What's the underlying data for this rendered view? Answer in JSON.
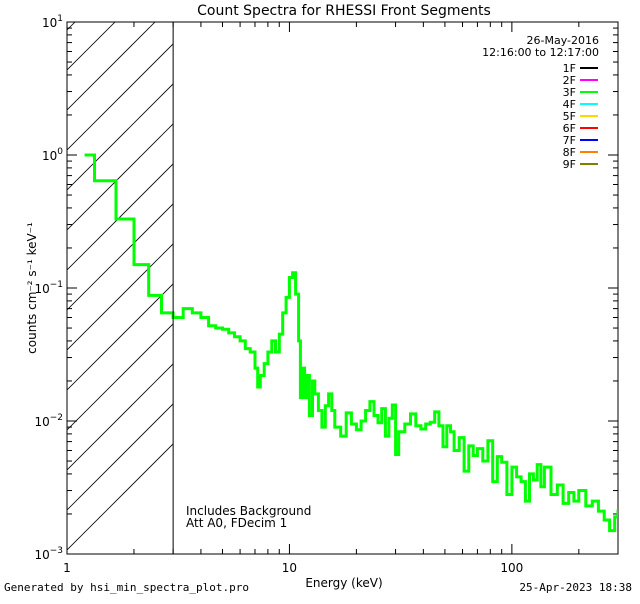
{
  "chart_data": {
    "type": "line",
    "title": "Count Spectra for RHESSI Front Segments",
    "xlabel": "Energy (keV)",
    "ylabel": "counts cm⁻² s⁻¹ keV⁻¹",
    "xscale": "log",
    "yscale": "log",
    "xlim": [
      1,
      300
    ],
    "ylim": [
      0.001,
      10
    ],
    "x_ticks": [
      {
        "value": 1,
        "label": "1"
      },
      {
        "value": 10,
        "label": "10"
      },
      {
        "value": 100,
        "label": "100"
      }
    ],
    "y_ticks": [
      {
        "value": 0.001,
        "base": "10",
        "exp": "−3"
      },
      {
        "value": 0.01,
        "base": "10",
        "exp": "−2"
      },
      {
        "value": 0.1,
        "base": "10",
        "exp": "−1"
      },
      {
        "value": 1,
        "base": "10",
        "exp": "0"
      },
      {
        "value": 10,
        "base": "10",
        "exp": "1"
      }
    ],
    "hatch_region": {
      "x_min": 1,
      "x_max": 3
    },
    "date": "26-May-2016",
    "time_range": "12:16:00 to 12:17:00",
    "legend": [
      {
        "name": "1F",
        "color": "#000000"
      },
      {
        "name": "2F",
        "color": "#ff00ff"
      },
      {
        "name": "3F",
        "color": "#00ff00"
      },
      {
        "name": "4F",
        "color": "#00ffff"
      },
      {
        "name": "5F",
        "color": "#ffd700"
      },
      {
        "name": "6F",
        "color": "#ff0000"
      },
      {
        "name": "7F",
        "color": "#0000ff"
      },
      {
        "name": "8F",
        "color": "#ff8000"
      },
      {
        "name": "9F",
        "color": "#808000"
      }
    ],
    "annotations": [
      "Includes Background",
      "Att A0, FDecim 1"
    ],
    "series": [
      {
        "name": "3F",
        "color": "#00ff00",
        "points": [
          [
            1.2,
            1.0
          ],
          [
            1.33,
            0.64
          ],
          [
            1.66,
            0.33
          ],
          [
            2.0,
            0.15
          ],
          [
            2.33,
            0.088
          ],
          [
            2.66,
            0.065
          ],
          [
            3.0,
            0.06
          ],
          [
            3.33,
            0.07
          ],
          [
            3.66,
            0.065
          ],
          [
            4.0,
            0.06
          ],
          [
            4.33,
            0.052
          ],
          [
            4.66,
            0.05
          ],
          [
            5.0,
            0.049
          ],
          [
            5.33,
            0.046
          ],
          [
            5.66,
            0.043
          ],
          [
            6.0,
            0.04
          ],
          [
            6.33,
            0.035
          ],
          [
            6.66,
            0.033
          ],
          [
            7.0,
            0.025
          ],
          [
            7.2,
            0.018
          ],
          [
            7.4,
            0.022
          ],
          [
            7.7,
            0.027
          ],
          [
            8.0,
            0.033
          ],
          [
            8.33,
            0.04
          ],
          [
            8.66,
            0.033
          ],
          [
            9.0,
            0.045
          ],
          [
            9.33,
            0.065
          ],
          [
            9.66,
            0.085
          ],
          [
            10.0,
            0.12
          ],
          [
            10.33,
            0.13
          ],
          [
            10.66,
            0.09
          ],
          [
            11.0,
            0.04
          ],
          [
            11.2,
            0.015
          ],
          [
            11.4,
            0.025
          ],
          [
            11.7,
            0.015
          ],
          [
            12.0,
            0.022
          ],
          [
            12.3,
            0.011
          ],
          [
            12.7,
            0.02
          ],
          [
            13.0,
            0.016
          ],
          [
            13.5,
            0.012
          ],
          [
            14.0,
            0.009
          ],
          [
            14.5,
            0.013
          ],
          [
            15.0,
            0.016
          ],
          [
            15.5,
            0.012
          ],
          [
            16.0,
            0.009
          ],
          [
            17.0,
            0.0077
          ],
          [
            18.0,
            0.0115
          ],
          [
            19.0,
            0.0095
          ],
          [
            20.0,
            0.0086
          ],
          [
            21.0,
            0.01
          ],
          [
            22.0,
            0.012
          ],
          [
            23.0,
            0.014
          ],
          [
            24.0,
            0.011
          ],
          [
            25.0,
            0.0097
          ],
          [
            26.0,
            0.0124
          ],
          [
            27.0,
            0.0077
          ],
          [
            28.0,
            0.0105
          ],
          [
            29.0,
            0.0132
          ],
          [
            30.0,
            0.0056
          ],
          [
            31.0,
            0.0083
          ],
          [
            33.0,
            0.0095
          ],
          [
            35.0,
            0.0113
          ],
          [
            37.0,
            0.0092
          ],
          [
            39.0,
            0.0087
          ],
          [
            41.0,
            0.0095
          ],
          [
            43.0,
            0.0098
          ],
          [
            45.0,
            0.0117
          ],
          [
            47.0,
            0.0092
          ],
          [
            49.0,
            0.0064
          ],
          [
            51.0,
            0.0092
          ],
          [
            53.0,
            0.0083
          ],
          [
            55.0,
            0.006
          ],
          [
            58.0,
            0.0075
          ],
          [
            61.0,
            0.0042
          ],
          [
            64.0,
            0.0065
          ],
          [
            67.0,
            0.0055
          ],
          [
            70.0,
            0.0062
          ],
          [
            74.0,
            0.005
          ],
          [
            78.0,
            0.0071
          ],
          [
            82.0,
            0.0035
          ],
          [
            86.0,
            0.0054
          ],
          [
            90.0,
            0.0049
          ],
          [
            95.0,
            0.0028
          ],
          [
            100.0,
            0.0045
          ],
          [
            105.0,
            0.0038
          ],
          [
            110.0,
            0.0035
          ],
          [
            115.0,
            0.0025
          ],
          [
            120.0,
            0.004
          ],
          [
            125.0,
            0.0036
          ],
          [
            130.0,
            0.0047
          ],
          [
            135.0,
            0.0032
          ],
          [
            140.0,
            0.0045
          ],
          [
            150.0,
            0.0028
          ],
          [
            160.0,
            0.0033
          ],
          [
            170.0,
            0.0024
          ],
          [
            180.0,
            0.0029
          ],
          [
            190.0,
            0.0025
          ],
          [
            200.0,
            0.003
          ],
          [
            215.0,
            0.0023
          ],
          [
            230.0,
            0.0025
          ],
          [
            245.0,
            0.0021
          ],
          [
            260.0,
            0.0018
          ],
          [
            275.0,
            0.0015
          ],
          [
            290.0,
            0.0019
          ],
          [
            300.0,
            0.0021
          ]
        ]
      }
    ]
  },
  "footer": {
    "generated_by": "Generated by hsi_min_spectra_plot.pro",
    "timestamp": "25-Apr-2023 18:38"
  }
}
